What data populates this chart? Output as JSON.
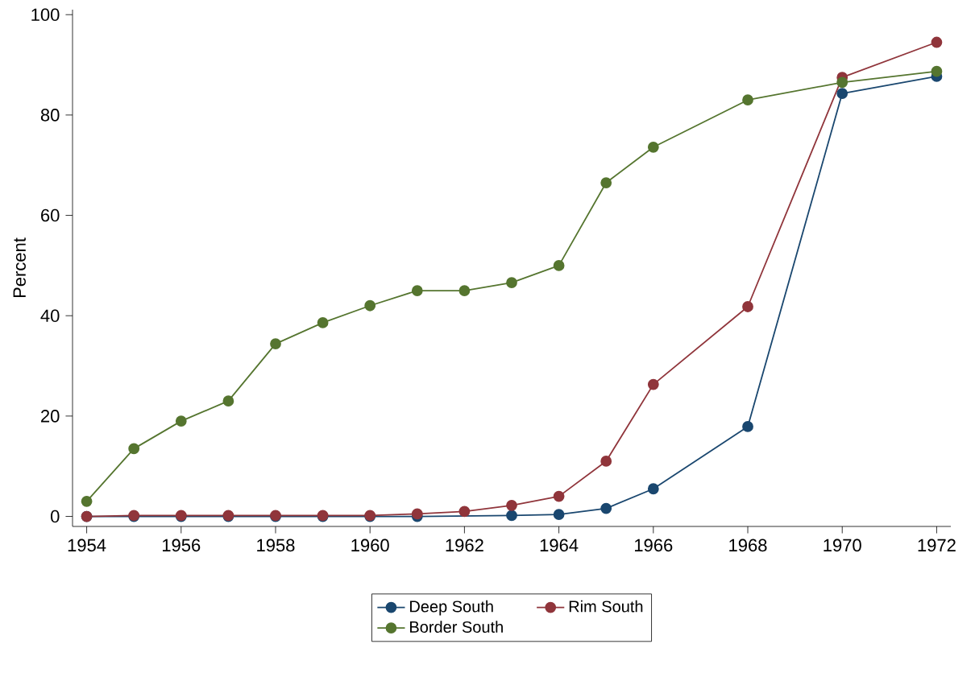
{
  "chart_data": {
    "type": "line",
    "ylabel": "Percent",
    "x": [
      1954,
      1955,
      1956,
      1957,
      1958,
      1959,
      1960,
      1961,
      1962,
      1963,
      1964,
      1965,
      1966,
      1968,
      1970,
      1972
    ],
    "series": [
      {
        "name": "Deep South",
        "color": "#1a476f",
        "values": [
          0,
          0,
          0,
          0,
          0,
          0,
          0,
          0,
          null,
          0.2,
          0.4,
          1.6,
          5.5,
          17.9,
          84.3,
          87.7
        ]
      },
      {
        "name": "Rim South",
        "color": "#90353b",
        "values": [
          0,
          0.2,
          0.2,
          0.2,
          0.2,
          0.2,
          0.2,
          0.5,
          1,
          2.2,
          4,
          11,
          26.3,
          41.8,
          87.5,
          94.5
        ]
      },
      {
        "name": "Border South",
        "color": "#55752f",
        "values": [
          3,
          13.5,
          19,
          23,
          34.4,
          38.6,
          42,
          45,
          45,
          46.6,
          50,
          66.5,
          73.6,
          83,
          86.5,
          88.7
        ]
      }
    ],
    "xlim": [
      1953.7,
      1972.3
    ],
    "ylim": [
      -2,
      101
    ],
    "xticks": [
      1954,
      1956,
      1958,
      1960,
      1962,
      1964,
      1966,
      1968,
      1970,
      1972
    ],
    "yticks": [
      0,
      20,
      40,
      60,
      80,
      100
    ],
    "marker": "circle",
    "line_style": "solid",
    "legend": "bottom",
    "grid": false
  }
}
